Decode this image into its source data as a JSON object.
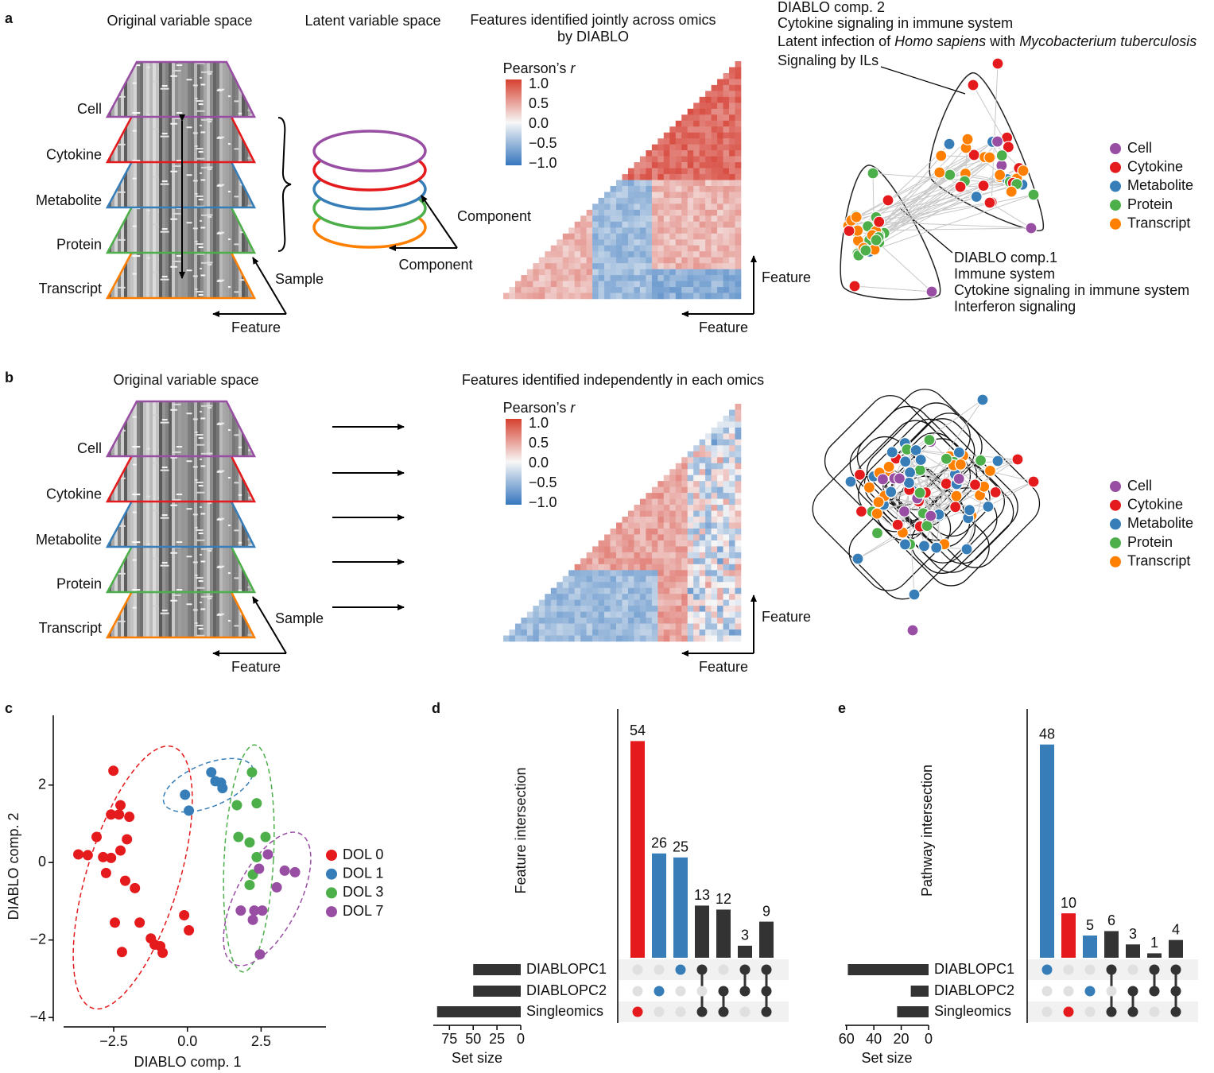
{
  "panel_a": {
    "letter": "a",
    "original_title": "Original variable space",
    "latent_title": "Latent variable space",
    "heatmap_title": [
      "Features identified jointly across omics",
      "by DIABLO"
    ],
    "layers": [
      {
        "name": "Cell",
        "color": "#984ea3"
      },
      {
        "name": "Cytokine",
        "color": "#e41a1c"
      },
      {
        "name": "Metabolite",
        "color": "#377eb8"
      },
      {
        "name": "Protein",
        "color": "#4daf4a"
      },
      {
        "name": "Transcript",
        "color": "#ff7f00"
      }
    ],
    "sample_label": "Sample",
    "feature_label": "Feature",
    "component_label": "Component",
    "colorbar_title": [
      "Pearson’s ",
      "r"
    ],
    "colorbar_ticks": [
      "1.0",
      "0.5",
      "0.0",
      "−0.5",
      "−1.0"
    ],
    "heatmap_axis": "Feature",
    "comp2_annotation": [
      "DIABLO comp. 2",
      "Cytokine signaling in immune system",
      [
        "Latent infection of ",
        "Homo sapiens",
        " with ",
        "Mycobacterium tuberculosis"
      ],
      "Signaling by ILs"
    ],
    "comp1_annotation": [
      "DIABLO comp.1",
      "Immune system",
      "Cytokine signaling in immune system",
      "Interferon signaling"
    ]
  },
  "panel_b": {
    "letter": "b",
    "original_title": "Original variable space",
    "heatmap_title": [
      "Features identified independently in each omics"
    ],
    "layers": [
      {
        "name": "Cell",
        "color": "#984ea3"
      },
      {
        "name": "Cytokine",
        "color": "#e41a1c"
      },
      {
        "name": "Metabolite",
        "color": "#377eb8"
      },
      {
        "name": "Protein",
        "color": "#4daf4a"
      },
      {
        "name": "Transcript",
        "color": "#ff7f00"
      }
    ],
    "sample_label": "Sample",
    "feature_label": "Feature",
    "colorbar_title": [
      "Pearson’s ",
      "r"
    ],
    "colorbar_ticks": [
      "1.0",
      "0.5",
      "0.0",
      "−0.5",
      "−1.0"
    ],
    "heatmap_axis": "Feature"
  },
  "chart_data": [
    {
      "type": "scatter",
      "letter": "c",
      "xlabel": "DIABLO comp. 1",
      "ylabel": "DIABLO comp. 2",
      "xlim": [
        -4.55,
        4.7
      ],
      "ylim": [
        -4.1,
        3.8
      ],
      "xticks": [
        {
          "value": -2.5,
          "label": "−2.5"
        },
        {
          "value": 0,
          "label": "0.0"
        },
        2.5
      ],
      "yticks": [
        {
          "value": -4,
          "label": "−4"
        },
        {
          "value": -2,
          "label": "−2"
        },
        0,
        2
      ],
      "series": [
        {
          "name": "DOL 0",
          "color": "#e41a1c",
          "x": [
            -2.51,
            -2.27,
            -2.59,
            -2.32,
            -1.97,
            -3.08,
            -2.86,
            -3.7,
            -3.38,
            -2.05,
            -2.27,
            -2.59,
            -2.11,
            -1.78,
            -2.76,
            -2.46,
            -1.62,
            -1.24,
            -1.11,
            -0.92,
            -0.84,
            -2.22,
            -0.11,
            0.05
          ],
          "values": [
            2.37,
            1.48,
            1.24,
            1.24,
            1.18,
            0.66,
            0.14,
            0.21,
            0.19,
            0.6,
            0.31,
            0.12,
            -0.47,
            -0.66,
            -0.27,
            -1.55,
            -1.55,
            -1.96,
            -2.12,
            -2.16,
            -2.33,
            -2.31,
            -1.36,
            -1.75
          ]
        },
        {
          "name": "DOL 1",
          "color": "#377eb8",
          "x": [
            -0.08,
            0.05,
            0.81,
            0.95,
            1.14,
            1.19
          ],
          "values": [
            1.75,
            1.34,
            2.33,
            2.1,
            2.06,
            1.92
          ]
        },
        {
          "name": "DOL 3",
          "color": "#4daf4a",
          "x": [
            2.19,
            1.68,
            2.35,
            1.73,
            2.11,
            2.65,
            2.35,
            2.22,
            2.11
          ],
          "values": [
            2.33,
            1.48,
            1.53,
            0.66,
            0.52,
            0.66,
            0.14,
            -0.31,
            -0.58
          ]
        },
        {
          "name": "DOL 7",
          "color": "#984ea3",
          "x": [
            2.73,
            3.3,
            3.65,
            2.43,
            3.03,
            1.81,
            2.27,
            2.54,
            2.22,
            2.46
          ],
          "values": [
            0.21,
            -0.21,
            -0.25,
            -0.16,
            -0.64,
            -1.24,
            -1.24,
            -1.24,
            -1.48,
            -2.37
          ]
        }
      ]
    },
    {
      "type": "upset",
      "letter": "d",
      "ylabel": "Feature intersection",
      "xlabel": "Set size",
      "values": [
        54,
        26,
        25,
        13,
        12,
        3,
        9
      ],
      "colors": [
        "#e41a1c",
        "#377eb8",
        "#377eb8",
        "#333333",
        "#333333",
        "#333333",
        "#333333"
      ],
      "ylim": [
        0,
        62
      ],
      "sets": [
        "DIABLOPC1",
        "DIABLOPC2",
        "Singleomics"
      ],
      "membership": [
        [
          0,
          0,
          1
        ],
        [
          0,
          1,
          0
        ],
        [
          1,
          0,
          0
        ],
        [
          1,
          0,
          1
        ],
        [
          0,
          1,
          1
        ],
        [
          1,
          1,
          0
        ],
        [
          1,
          1,
          1
        ]
      ],
      "set_sizes": [
        50,
        50,
        88
      ],
      "set_size_lim": [
        0,
        92
      ],
      "set_size_ticks": [
        0,
        25,
        50,
        75
      ]
    },
    {
      "type": "upset",
      "letter": "e",
      "ylabel": "Pathway intersection",
      "xlabel": "Set size",
      "values": [
        48,
        10,
        5,
        6,
        3,
        1,
        4
      ],
      "colors": [
        "#377eb8",
        "#e41a1c",
        "#377eb8",
        "#333333",
        "#333333",
        "#333333",
        "#333333"
      ],
      "ylim": [
        0,
        56
      ],
      "sets": [
        "DIABLOPC1",
        "DIABLOPC2",
        "Singleomics"
      ],
      "membership": [
        [
          1,
          0,
          0
        ],
        [
          0,
          0,
          1
        ],
        [
          0,
          1,
          0
        ],
        [
          1,
          0,
          1
        ],
        [
          0,
          1,
          1
        ],
        [
          1,
          1,
          0
        ],
        [
          1,
          1,
          1
        ]
      ],
      "set_sizes": [
        59,
        13,
        23
      ],
      "set_size_lim": [
        0,
        61
      ],
      "set_size_ticks": [
        0,
        20,
        40,
        60
      ]
    }
  ]
}
